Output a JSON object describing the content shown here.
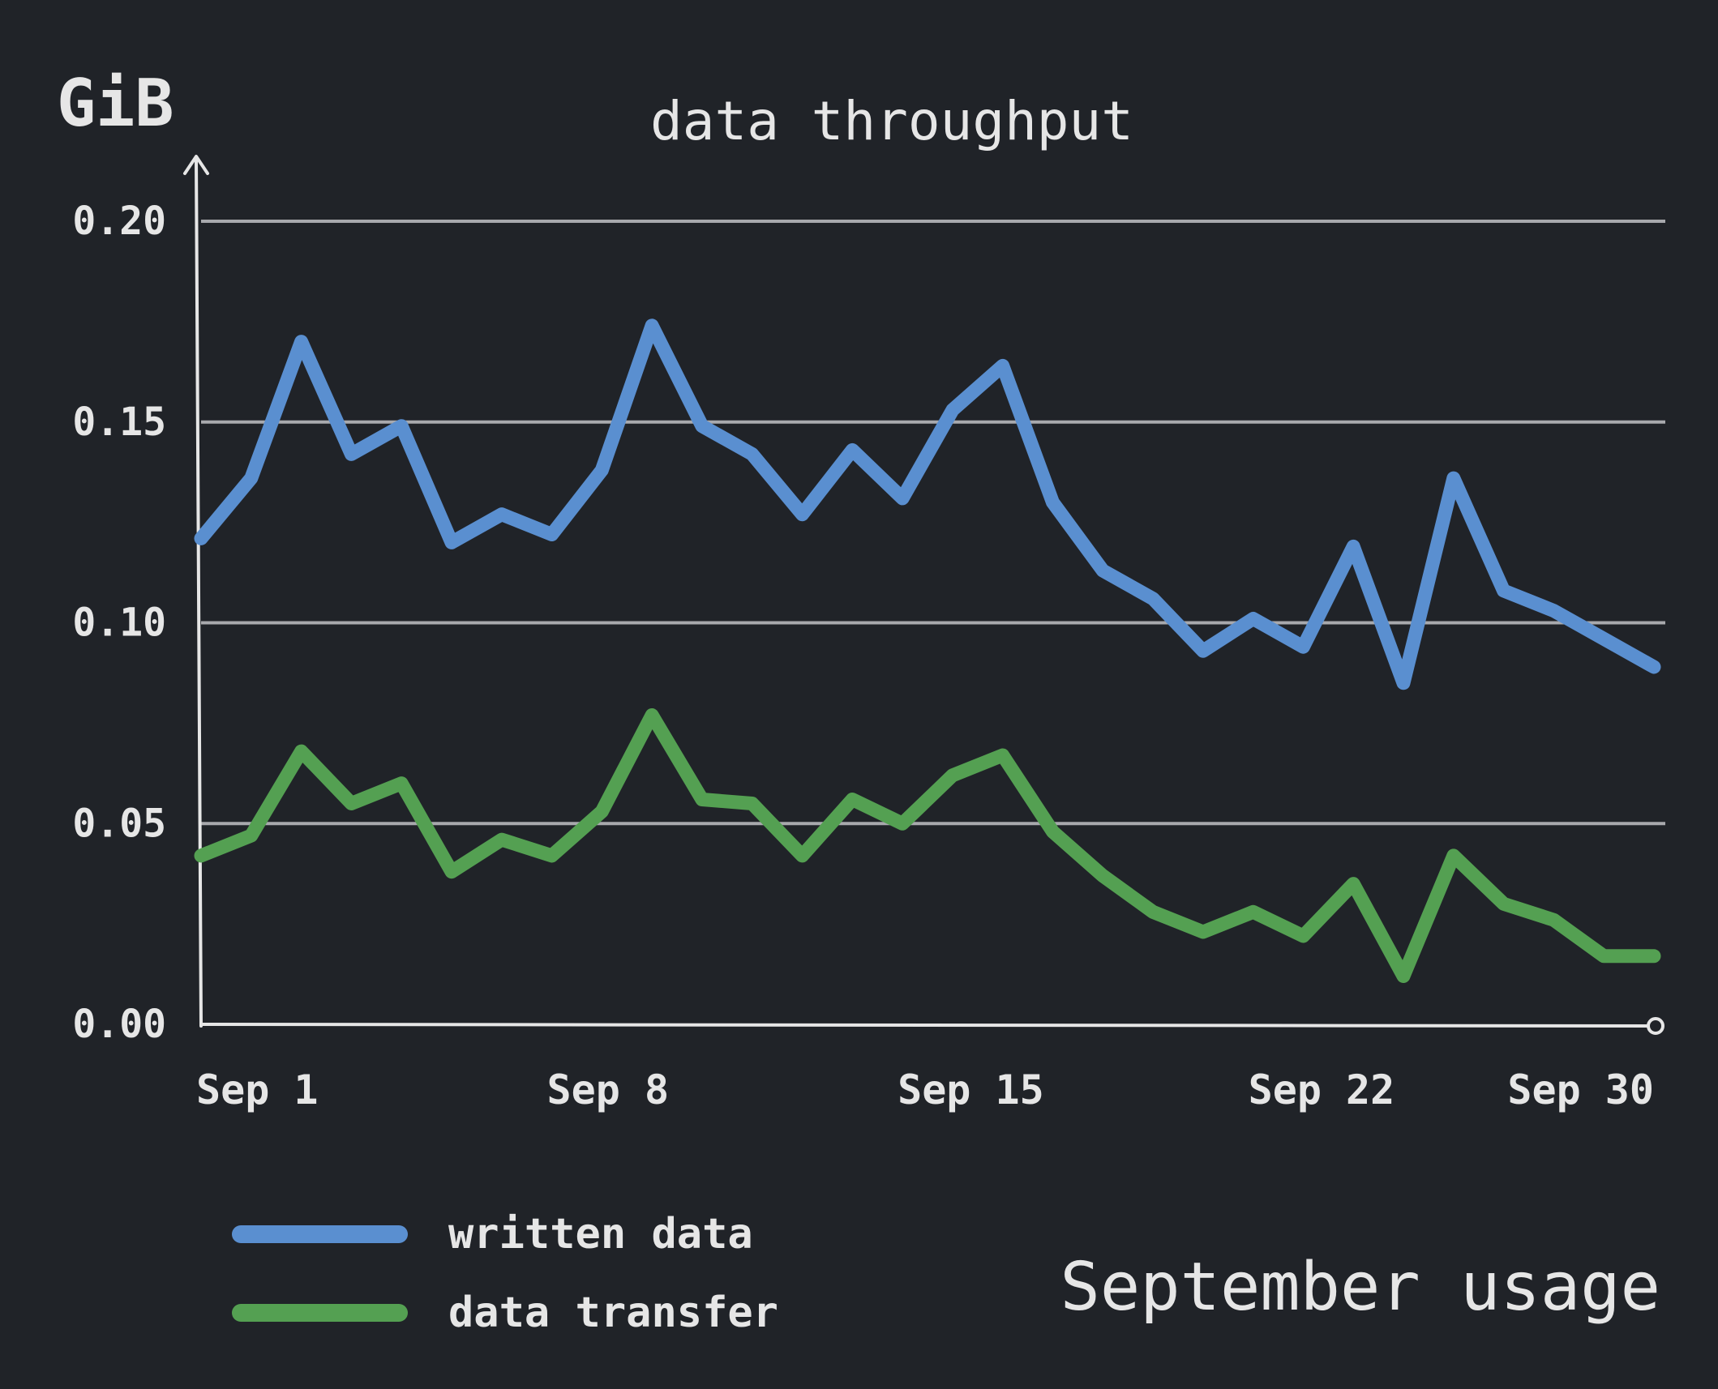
{
  "chart_data": {
    "type": "line",
    "title": "data throughput",
    "ylabel": "GiB",
    "footer": "September usage",
    "ylim": [
      0,
      0.2
    ],
    "yticks": [
      "0.00",
      "0.05",
      "0.10",
      "0.15",
      "0.20"
    ],
    "ytick_values": [
      0,
      0.05,
      0.1,
      0.15,
      0.2
    ],
    "xlim": [
      1,
      30
    ],
    "xticks": [
      "Sep 1",
      "Sep 8",
      "Sep 15",
      "Sep 22",
      "Sep 30"
    ],
    "xtick_values": [
      1,
      8,
      15,
      22,
      30
    ],
    "grid": true,
    "legend_position": "bottom-left",
    "background_color": "#202328",
    "x": [
      1,
      2,
      3,
      4,
      5,
      6,
      7,
      8,
      9,
      10,
      11,
      12,
      13,
      14,
      15,
      16,
      17,
      18,
      19,
      20,
      21,
      22,
      23,
      24,
      25,
      26,
      27,
      28,
      29,
      30
    ],
    "series": [
      {
        "name": "written data",
        "color": "#5a8fd0",
        "values": [
          0.121,
          0.136,
          0.17,
          0.142,
          0.149,
          0.12,
          0.127,
          0.122,
          0.138,
          0.174,
          0.149,
          0.142,
          0.127,
          0.143,
          0.131,
          0.153,
          0.164,
          0.13,
          0.113,
          0.106,
          0.093,
          0.101,
          0.094,
          0.119,
          0.085,
          0.136,
          0.108,
          0.103,
          0.096,
          0.089
        ]
      },
      {
        "name": "data transfer",
        "color": "#54a052",
        "values": [
          0.042,
          0.047,
          0.068,
          0.055,
          0.06,
          0.038,
          0.046,
          0.042,
          0.053,
          0.077,
          0.056,
          0.055,
          0.042,
          0.056,
          0.05,
          0.062,
          0.067,
          0.048,
          0.037,
          0.028,
          0.023,
          0.028,
          0.022,
          0.035,
          0.012,
          0.042,
          0.03,
          0.026,
          0.017,
          0.017
        ]
      }
    ]
  }
}
